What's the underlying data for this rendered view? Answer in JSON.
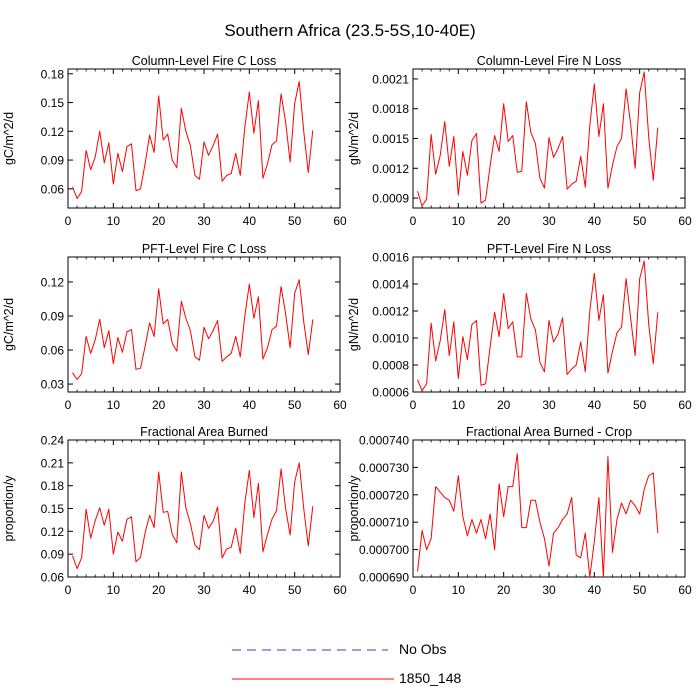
{
  "title": "Southern Africa (23.5-5S,10-40E)",
  "legend": {
    "placement": "bottom-center",
    "items": [
      {
        "label": "No Obs",
        "color": "#3b3bd6",
        "dash": true
      },
      {
        "label": "1850_148",
        "color": "#ff0000",
        "dash": false
      }
    ]
  },
  "chart_data": [
    {
      "type": "line",
      "title": "Column-Level Fire C Loss",
      "xlabel": "",
      "ylabel": "gC/m^2/d",
      "xlim": [
        0,
        60
      ],
      "ylim": [
        0.04,
        0.185
      ],
      "xticks": [
        0,
        10,
        20,
        30,
        40,
        50,
        60
      ],
      "yticks": [
        0.06,
        0.09,
        0.12,
        0.15,
        0.18
      ],
      "ytick_labels": [
        "0.06",
        "0.09",
        "0.12",
        "0.15",
        "0.18"
      ],
      "grid": false,
      "x": [
        1,
        2,
        3,
        4,
        5,
        6,
        7,
        8,
        9,
        10,
        11,
        12,
        13,
        14,
        15,
        16,
        17,
        18,
        19,
        20,
        21,
        22,
        23,
        24,
        25,
        26,
        27,
        28,
        29,
        30,
        31,
        32,
        33,
        34,
        35,
        36,
        37,
        38,
        39,
        40,
        41,
        42,
        43,
        44,
        45,
        46,
        47,
        48,
        49,
        50,
        51,
        52,
        53,
        54
      ],
      "series": [
        {
          "name": "1850_148",
          "color": "#ff0000",
          "values": [
            0.062,
            0.05,
            0.057,
            0.1,
            0.08,
            0.093,
            0.12,
            0.087,
            0.108,
            0.065,
            0.097,
            0.078,
            0.104,
            0.107,
            0.058,
            0.06,
            0.086,
            0.116,
            0.098,
            0.157,
            0.111,
            0.117,
            0.09,
            0.082,
            0.144,
            0.12,
            0.105,
            0.074,
            0.07,
            0.109,
            0.095,
            0.105,
            0.117,
            0.068,
            0.074,
            0.076,
            0.097,
            0.074,
            0.124,
            0.161,
            0.118,
            0.152,
            0.071,
            0.086,
            0.106,
            0.11,
            0.159,
            0.13,
            0.088,
            0.149,
            0.172,
            0.12,
            0.077,
            0.121
          ]
        }
      ]
    },
    {
      "type": "line",
      "title": "Column-Level Fire N Loss",
      "xlabel": "",
      "ylabel": "gN/m^2/d",
      "xlim": [
        0,
        60
      ],
      "ylim": [
        0.0008,
        0.0022
      ],
      "xticks": [
        0,
        10,
        20,
        30,
        40,
        50,
        60
      ],
      "yticks": [
        0.0009,
        0.0012,
        0.0015,
        0.0018,
        0.0021
      ],
      "ytick_labels": [
        "0.0009",
        "0.0012",
        "0.0015",
        "0.0018",
        "0.0021"
      ],
      "grid": false,
      "x": [
        1,
        2,
        3,
        4,
        5,
        6,
        7,
        8,
        9,
        10,
        11,
        12,
        13,
        14,
        15,
        16,
        17,
        18,
        19,
        20,
        21,
        22,
        23,
        24,
        25,
        26,
        27,
        28,
        29,
        30,
        31,
        32,
        33,
        34,
        35,
        36,
        37,
        38,
        39,
        40,
        41,
        42,
        43,
        44,
        45,
        46,
        47,
        48,
        49,
        50,
        51,
        52,
        53,
        54
      ],
      "series": [
        {
          "name": "1850_148",
          "color": "#ff0000",
          "values": [
            0.00097,
            0.00082,
            0.00089,
            0.00154,
            0.00114,
            0.00133,
            0.00167,
            0.00122,
            0.00152,
            0.00093,
            0.00137,
            0.00113,
            0.00148,
            0.00155,
            0.00085,
            0.00088,
            0.00122,
            0.00153,
            0.00137,
            0.00185,
            0.00147,
            0.00153,
            0.00116,
            0.00117,
            0.00187,
            0.00156,
            0.00145,
            0.0011,
            0.001,
            0.00151,
            0.00131,
            0.0014,
            0.00152,
            0.00099,
            0.00104,
            0.00107,
            0.00132,
            0.00101,
            0.00163,
            0.00205,
            0.00152,
            0.00185,
            0.001,
            0.00123,
            0.00142,
            0.0015,
            0.002,
            0.00165,
            0.0012,
            0.00196,
            0.00217,
            0.00151,
            0.00108,
            0.00161
          ]
        }
      ]
    },
    {
      "type": "line",
      "title": "PFT-Level Fire C Loss",
      "xlabel": "",
      "ylabel": "gC/m^2/d",
      "xlim": [
        0,
        60
      ],
      "ylim": [
        0.023,
        0.142
      ],
      "xticks": [
        0,
        10,
        20,
        30,
        40,
        50,
        60
      ],
      "yticks": [
        0.03,
        0.06,
        0.09,
        0.12
      ],
      "ytick_labels": [
        "0.03",
        "0.06",
        "0.09",
        "0.12"
      ],
      "grid": false,
      "x": [
        1,
        2,
        3,
        4,
        5,
        6,
        7,
        8,
        9,
        10,
        11,
        12,
        13,
        14,
        15,
        16,
        17,
        18,
        19,
        20,
        21,
        22,
        23,
        24,
        25,
        26,
        27,
        28,
        29,
        30,
        31,
        32,
        33,
        34,
        35,
        36,
        37,
        38,
        39,
        40,
        41,
        42,
        43,
        44,
        45,
        46,
        47,
        48,
        49,
        50,
        51,
        52,
        53,
        54
      ],
      "series": [
        {
          "name": "1850_148",
          "color": "#ff0000",
          "values": [
            0.04,
            0.034,
            0.039,
            0.072,
            0.057,
            0.069,
            0.087,
            0.062,
            0.077,
            0.048,
            0.071,
            0.058,
            0.076,
            0.078,
            0.043,
            0.044,
            0.063,
            0.084,
            0.072,
            0.114,
            0.083,
            0.087,
            0.066,
            0.059,
            0.103,
            0.088,
            0.077,
            0.054,
            0.051,
            0.08,
            0.07,
            0.077,
            0.086,
            0.05,
            0.054,
            0.057,
            0.072,
            0.054,
            0.09,
            0.118,
            0.088,
            0.107,
            0.052,
            0.062,
            0.078,
            0.081,
            0.116,
            0.092,
            0.062,
            0.11,
            0.122,
            0.085,
            0.056,
            0.087
          ]
        }
      ]
    },
    {
      "type": "line",
      "title": "PFT-Level Fire N Loss",
      "xlabel": "",
      "ylabel": "gN/m^2/d",
      "xlim": [
        0,
        60
      ],
      "ylim": [
        0.0006,
        0.0016
      ],
      "xticks": [
        0,
        10,
        20,
        30,
        40,
        50,
        60
      ],
      "yticks": [
        0.0006,
        0.0008,
        0.001,
        0.0012,
        0.0014,
        0.0016
      ],
      "ytick_labels": [
        "0.0006",
        "0.0008",
        "0.0010",
        "0.0012",
        "0.0014",
        "0.0016"
      ],
      "grid": false,
      "x": [
        1,
        2,
        3,
        4,
        5,
        6,
        7,
        8,
        9,
        10,
        11,
        12,
        13,
        14,
        15,
        16,
        17,
        18,
        19,
        20,
        21,
        22,
        23,
        24,
        25,
        26,
        27,
        28,
        29,
        30,
        31,
        32,
        33,
        34,
        35,
        36,
        37,
        38,
        39,
        40,
        41,
        42,
        43,
        44,
        45,
        46,
        47,
        48,
        49,
        50,
        51,
        52,
        53,
        54
      ],
      "series": [
        {
          "name": "1850_148",
          "color": "#ff0000",
          "values": [
            0.00069,
            0.00061,
            0.00066,
            0.00111,
            0.00083,
            0.00098,
            0.00121,
            0.00087,
            0.00112,
            0.0007,
            0.00101,
            0.00084,
            0.0011,
            0.00113,
            0.00065,
            0.00066,
            0.00093,
            0.00119,
            0.00101,
            0.00133,
            0.00107,
            0.00112,
            0.00086,
            0.00086,
            0.00133,
            0.00114,
            0.00106,
            0.00082,
            0.00075,
            0.00113,
            0.00097,
            0.00103,
            0.00115,
            0.00073,
            0.00077,
            0.0008,
            0.00097,
            0.00075,
            0.0012,
            0.00148,
            0.00113,
            0.00132,
            0.00074,
            0.0009,
            0.00104,
            0.00108,
            0.00144,
            0.00115,
            0.00087,
            0.00144,
            0.00157,
            0.0011,
            0.00081,
            0.00119
          ]
        }
      ]
    },
    {
      "type": "line",
      "title": "Fractional Area Burned",
      "xlabel": "",
      "ylabel": "proportion/y",
      "xlim": [
        0,
        60
      ],
      "ylim": [
        0.06,
        0.24
      ],
      "xticks": [
        0,
        10,
        20,
        30,
        40,
        50,
        60
      ],
      "yticks": [
        0.06,
        0.09,
        0.12,
        0.15,
        0.18,
        0.21,
        0.24
      ],
      "ytick_labels": [
        "0.06",
        "0.09",
        "0.12",
        "0.15",
        "0.18",
        "0.21",
        "0.24"
      ],
      "grid": false,
      "x": [
        1,
        2,
        3,
        4,
        5,
        6,
        7,
        8,
        9,
        10,
        11,
        12,
        13,
        14,
        15,
        16,
        17,
        18,
        19,
        20,
        21,
        22,
        23,
        24,
        25,
        26,
        27,
        28,
        29,
        30,
        31,
        32,
        33,
        34,
        35,
        36,
        37,
        38,
        39,
        40,
        41,
        42,
        43,
        44,
        45,
        46,
        47,
        48,
        49,
        50,
        51,
        52,
        53,
        54
      ],
      "series": [
        {
          "name": "1850_148",
          "color": "#ff0000",
          "values": [
            0.088,
            0.071,
            0.085,
            0.149,
            0.111,
            0.134,
            0.151,
            0.128,
            0.149,
            0.09,
            0.119,
            0.107,
            0.136,
            0.139,
            0.08,
            0.086,
            0.118,
            0.141,
            0.125,
            0.198,
            0.145,
            0.146,
            0.116,
            0.105,
            0.198,
            0.151,
            0.13,
            0.102,
            0.096,
            0.141,
            0.124,
            0.133,
            0.152,
            0.085,
            0.097,
            0.099,
            0.124,
            0.091,
            0.157,
            0.2,
            0.138,
            0.183,
            0.093,
            0.116,
            0.136,
            0.147,
            0.202,
            0.15,
            0.115,
            0.185,
            0.21,
            0.15,
            0.101,
            0.153
          ]
        }
      ]
    },
    {
      "type": "line",
      "title": "Fractional Area Burned - Crop",
      "xlabel": "",
      "ylabel": "proportion/y",
      "xlim": [
        0,
        60
      ],
      "ylim": [
        0.00069,
        0.00074
      ],
      "xticks": [
        0,
        10,
        20,
        30,
        40,
        50,
        60
      ],
      "yticks": [
        0.00069,
        0.0007,
        0.00071,
        0.00072,
        0.00073,
        0.00074
      ],
      "ytick_labels": [
        "0.000690",
        "0.000700",
        "0.000710",
        "0.000720",
        "0.000730",
        "0.000740"
      ],
      "grid": false,
      "x": [
        1,
        2,
        3,
        4,
        5,
        6,
        7,
        8,
        9,
        10,
        11,
        12,
        13,
        14,
        15,
        16,
        17,
        18,
        19,
        20,
        21,
        22,
        23,
        24,
        25,
        26,
        27,
        28,
        29,
        30,
        31,
        32,
        33,
        34,
        35,
        36,
        37,
        38,
        39,
        40,
        41,
        42,
        43,
        44,
        45,
        46,
        47,
        48,
        49,
        50,
        51,
        52,
        53,
        54
      ],
      "series": [
        {
          "name": "1850_148",
          "color": "#ff0000",
          "values": [
            0.000692,
            0.000707,
            0.0007,
            0.000704,
            0.000723,
            0.000721,
            0.000719,
            0.000718,
            0.000714,
            0.000727,
            0.000712,
            0.000705,
            0.000711,
            0.000706,
            0.000711,
            0.000704,
            0.000713,
            0.0007,
            0.000724,
            0.000712,
            0.000723,
            0.000723,
            0.000735,
            0.000708,
            0.000708,
            0.000718,
            0.000718,
            0.00071,
            0.000704,
            0.000694,
            0.000706,
            0.000708,
            0.000711,
            0.000713,
            0.000719,
            0.000698,
            0.000697,
            0.000706,
            0.00069,
            0.000703,
            0.000719,
            0.00069,
            0.000734,
            0.000699,
            0.000711,
            0.000717,
            0.000713,
            0.000718,
            0.000716,
            0.000713,
            0.000722,
            0.000727,
            0.000728,
            0.000706
          ]
        }
      ]
    }
  ]
}
